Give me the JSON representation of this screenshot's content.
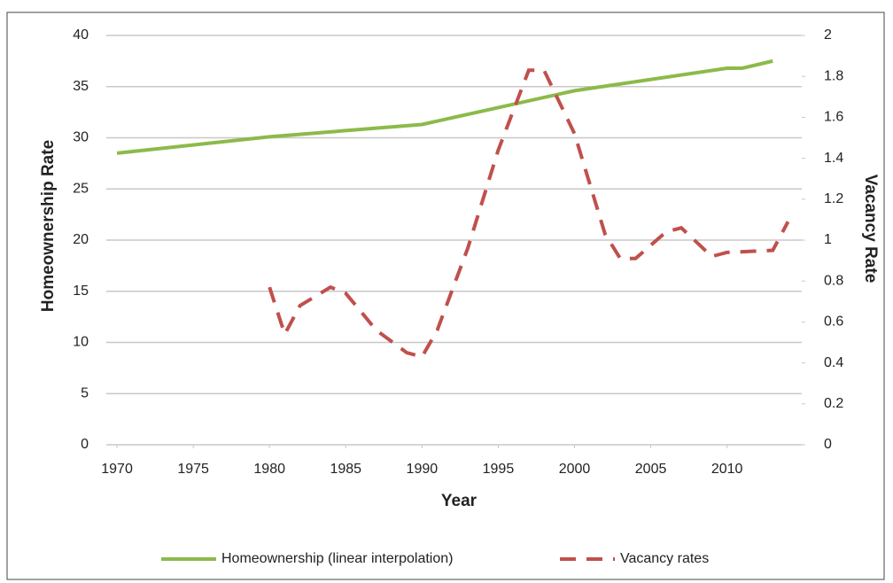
{
  "chart_data": {
    "type": "line",
    "x_label": "Year",
    "y_label": "Homeownership Rate",
    "y2_label": "Vacancy Rate",
    "xlim": [
      1969.3,
      2014.9
    ],
    "xticks": [
      1970,
      1975,
      1980,
      1985,
      1990,
      1995,
      2000,
      2005,
      2010
    ],
    "ylim": [
      0,
      40
    ],
    "yticks": [
      0,
      5,
      10,
      15,
      20,
      25,
      30,
      35,
      40
    ],
    "y2lim": [
      0,
      2
    ],
    "y2ticks": [
      0,
      0.2,
      0.4,
      0.6,
      0.8,
      1,
      1.2,
      1.4,
      1.6,
      1.8,
      2
    ],
    "grid": true,
    "legend": "bottom",
    "series": [
      {
        "name": "Homeownership (linear interpolation)",
        "color": "#8cba4a",
        "dash": "solid",
        "x": [
          1970,
          1980,
          1990,
          2000,
          2010,
          2011,
          2013
        ],
        "values": [
          28.5,
          30.1,
          31.3,
          34.6,
          36.8,
          36.8,
          37.5
        ]
      },
      {
        "name": "Vacancy rates",
        "color": "#c0504d",
        "dash": "dashed",
        "axis": "y2",
        "x": [
          1980,
          1981,
          1982,
          1984,
          1985,
          1987,
          1989,
          1990,
          1991,
          1993,
          1995,
          1997,
          1998,
          2000,
          2002,
          2003,
          2004,
          2006,
          2007,
          2009,
          2010,
          2013,
          2014
        ],
        "values": [
          0.77,
          0.54,
          0.68,
          0.77,
          0.74,
          0.56,
          0.45,
          0.43,
          0.56,
          0.96,
          1.44,
          1.83,
          1.83,
          1.52,
          1.03,
          0.91,
          0.91,
          1.04,
          1.06,
          0.92,
          0.94,
          0.95,
          1.09
        ]
      }
    ]
  }
}
